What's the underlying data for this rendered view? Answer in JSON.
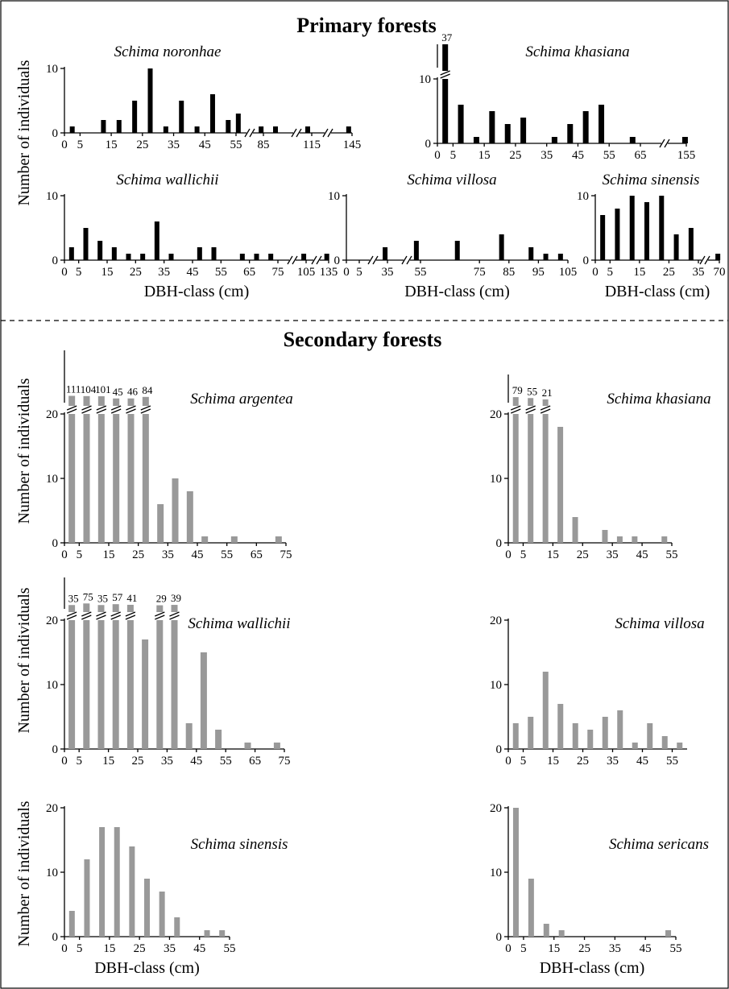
{
  "figure": {
    "primary_heading": "Primary forests",
    "secondary_heading": "Secondary forests",
    "y_axis_label": "Number of individuals",
    "x_axis_label": "DBH-class (cm)"
  },
  "colors": {
    "primary_bar": "#000000",
    "secondary_bar": "#999999",
    "axis": "#000000"
  },
  "chart_data": [
    {
      "type": "bar",
      "group": "Primary forests",
      "title": "Schima noronhae",
      "color": "#000000",
      "x": [
        2.5,
        12.5,
        17.5,
        22.5,
        27.5,
        32.5,
        37.5,
        42.5,
        47.5,
        52.5,
        57.5,
        82.5,
        92.5,
        112.5,
        142.5
      ],
      "values": [
        1,
        2,
        2,
        5,
        10,
        1,
        5,
        1,
        6,
        2,
        3,
        1,
        1,
        1,
        1
      ],
      "ylim": [
        0,
        10
      ],
      "yticks": [
        0,
        10
      ],
      "xticks": [
        "0",
        "5",
        "15",
        "25",
        "35",
        "45",
        "55",
        "85",
        "115",
        "145"
      ],
      "axis_breaks": [
        "55-85",
        "85-115",
        "115-145"
      ],
      "ylabel": "Number of individuals",
      "xlabel": ""
    },
    {
      "type": "bar",
      "group": "Primary forests",
      "title": "Schima khasiana",
      "color": "#000000",
      "x": [
        2.5,
        7.5,
        12.5,
        17.5,
        22.5,
        27.5,
        37.5,
        42.5,
        47.5,
        52.5,
        62.5,
        152.5
      ],
      "values": [
        37,
        6,
        1,
        5,
        3,
        4,
        1,
        3,
        5,
        6,
        1,
        1
      ],
      "value_labels": {
        "2.5": "37"
      },
      "ylim": [
        0,
        10
      ],
      "yticks": [
        0,
        10
      ],
      "xticks": [
        "0",
        "5",
        "15",
        "25",
        "35",
        "45",
        "55",
        "65",
        "155"
      ],
      "axis_breaks": [
        "y-above-10",
        "65-155"
      ],
      "xlabel": ""
    },
    {
      "type": "bar",
      "group": "Primary forests",
      "title": "Schima wallichii",
      "color": "#000000",
      "x": [
        2.5,
        7.5,
        12.5,
        17.5,
        22.5,
        27.5,
        32.5,
        37.5,
        47.5,
        52.5,
        62.5,
        67.5,
        72.5,
        102.5,
        132.5
      ],
      "values": [
        2,
        5,
        3,
        2,
        1,
        1,
        6,
        1,
        2,
        2,
        1,
        1,
        1,
        1,
        1
      ],
      "ylim": [
        0,
        10
      ],
      "yticks": [
        0,
        10
      ],
      "xticks": [
        "0",
        "5",
        "15",
        "25",
        "35",
        "45",
        "55",
        "65",
        "75",
        "105",
        "135"
      ],
      "axis_breaks": [
        "75-105",
        "105-135"
      ],
      "xlabel": "DBH-class (cm)"
    },
    {
      "type": "bar",
      "group": "Primary forests",
      "title": "Schima villosa",
      "color": "#000000",
      "x": [
        32.5,
        52.5,
        67.5,
        82.5,
        92.5,
        97.5,
        102.5
      ],
      "values": [
        2,
        3,
        3,
        4,
        2,
        1,
        1
      ],
      "ylim": [
        0,
        10
      ],
      "yticks": [
        0,
        10
      ],
      "xticks": [
        "0",
        "5",
        "35",
        "55",
        "75",
        "85",
        "95",
        "105"
      ],
      "axis_breaks": [
        "5-35",
        "35-55"
      ],
      "xlabel": "DBH-class (cm)"
    },
    {
      "type": "bar",
      "group": "Primary forests",
      "title": "Schima sinensis",
      "color": "#000000",
      "x": [
        2.5,
        7.5,
        12.5,
        17.5,
        22.5,
        27.5,
        32.5,
        67.5
      ],
      "values": [
        7,
        8,
        10,
        9,
        10,
        4,
        5,
        1
      ],
      "ylim": [
        0,
        10
      ],
      "yticks": [
        0,
        10
      ],
      "xticks": [
        "0",
        "5",
        "15",
        "25",
        "35",
        "70"
      ],
      "axis_breaks": [
        "35-70"
      ],
      "xlabel": "DBH-class (cm)"
    },
    {
      "type": "bar",
      "group": "Secondary forests",
      "title": "Schima argentea",
      "color": "#999999",
      "x": [
        2.5,
        7.5,
        12.5,
        17.5,
        22.5,
        27.5,
        32.5,
        37.5,
        42.5,
        47.5,
        57.5,
        72.5
      ],
      "values": [
        111,
        104,
        101,
        45,
        46,
        84,
        6,
        10,
        8,
        1,
        1,
        1
      ],
      "value_labels": {
        "2.5": "111",
        "7.5": "104",
        "12.5": "101",
        "17.5": "45",
        "22.5": "46",
        "27.5": "84"
      },
      "ylim": [
        0,
        20
      ],
      "yticks": [
        0,
        10,
        20
      ],
      "xticks": [
        "0",
        "5",
        "15",
        "25",
        "35",
        "45",
        "55",
        "65",
        "75"
      ],
      "axis_breaks": [
        "y-above-20"
      ],
      "ylabel": "Number of individuals",
      "xlabel": ""
    },
    {
      "type": "bar",
      "group": "Secondary forests",
      "title": "Schima khasiana",
      "color": "#999999",
      "x": [
        2.5,
        7.5,
        12.5,
        17.5,
        22.5,
        32.5,
        37.5,
        42.5,
        52.5
      ],
      "values": [
        79,
        55,
        21,
        18,
        4,
        2,
        1,
        1,
        1
      ],
      "value_labels": {
        "2.5": "79",
        "7.5": "55",
        "12.5": "21"
      },
      "ylim": [
        0,
        20
      ],
      "yticks": [
        0,
        10,
        20
      ],
      "xticks": [
        "0",
        "5",
        "15",
        "25",
        "35",
        "45",
        "55"
      ],
      "axis_breaks": [
        "y-above-20"
      ],
      "xlabel": ""
    },
    {
      "type": "bar",
      "group": "Secondary forests",
      "title": "Schima wallichii",
      "color": "#999999",
      "x": [
        2.5,
        7.5,
        12.5,
        17.5,
        22.5,
        27.5,
        32.5,
        37.5,
        42.5,
        47.5,
        52.5,
        62.5,
        72.5
      ],
      "values": [
        35,
        75,
        35,
        57,
        41,
        17,
        29,
        39,
        4,
        15,
        3,
        1,
        1
      ],
      "value_labels": {
        "2.5": "35",
        "7.5": "75",
        "12.5": "35",
        "17.5": "57",
        "22.5": "41",
        "32.5": "29",
        "37.5": "39"
      },
      "ylim": [
        0,
        20
      ],
      "yticks": [
        0,
        10,
        20
      ],
      "xticks": [
        "0",
        "5",
        "15",
        "25",
        "35",
        "45",
        "55",
        "65",
        "75"
      ],
      "axis_breaks": [
        "y-above-20"
      ],
      "ylabel": "Number of individuals",
      "xlabel": ""
    },
    {
      "type": "bar",
      "group": "Secondary forests",
      "title": "Schima villosa",
      "color": "#999999",
      "x": [
        2.5,
        7.5,
        12.5,
        17.5,
        22.5,
        27.5,
        32.5,
        37.5,
        42.5,
        47.5,
        52.5,
        57.5
      ],
      "values": [
        4,
        5,
        12,
        7,
        4,
        3,
        5,
        6,
        1,
        4,
        2,
        1
      ],
      "ylim": [
        0,
        20
      ],
      "yticks": [
        0,
        10,
        20
      ],
      "xticks": [
        "0",
        "5",
        "15",
        "25",
        "35",
        "45",
        "55"
      ],
      "xlabel": ""
    },
    {
      "type": "bar",
      "group": "Secondary forests",
      "title": "Schima sinensis",
      "color": "#999999",
      "x": [
        2.5,
        7.5,
        12.5,
        17.5,
        22.5,
        27.5,
        32.5,
        37.5,
        47.5,
        52.5
      ],
      "values": [
        4,
        12,
        17,
        17,
        14,
        9,
        7,
        3,
        1,
        1
      ],
      "ylim": [
        0,
        20
      ],
      "yticks": [
        0,
        10,
        20
      ],
      "xticks": [
        "0",
        "5",
        "15",
        "25",
        "35",
        "45",
        "55"
      ],
      "ylabel": "Number of individuals",
      "xlabel": "DBH-class (cm)"
    },
    {
      "type": "bar",
      "group": "Secondary forests",
      "title": "Schima sericans",
      "color": "#999999",
      "x": [
        2.5,
        7.5,
        12.5,
        17.5,
        52.5
      ],
      "values": [
        20,
        9,
        2,
        1,
        1
      ],
      "ylim": [
        0,
        20
      ],
      "yticks": [
        0,
        10,
        20
      ],
      "xticks": [
        "0",
        "5",
        "15",
        "25",
        "35",
        "45",
        "55"
      ],
      "xlabel": "DBH-class (cm)"
    }
  ]
}
